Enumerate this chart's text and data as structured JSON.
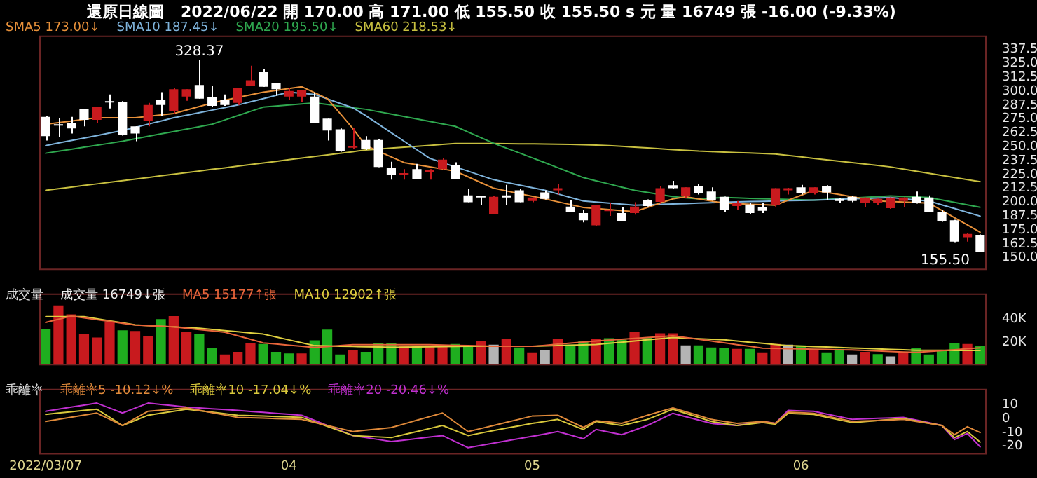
{
  "chart_data": [
    {
      "type": "candlestick",
      "title": "還原日線圖",
      "subtitle": "2022/06/22 開 170.00 高 171.00 低 155.50 收 155.50 s 元 量 16749 張 -16.00 (-9.33%)",
      "categories": [
        "2022/03/07",
        null,
        null,
        null,
        null,
        null,
        null,
        null,
        null,
        null,
        null,
        null,
        null,
        null,
        null,
        null,
        null,
        null,
        null,
        "04",
        null,
        null,
        null,
        null,
        null,
        null,
        null,
        null,
        null,
        null,
        null,
        null,
        null,
        null,
        null,
        null,
        null,
        null,
        "05",
        null,
        null,
        null,
        null,
        null,
        null,
        null,
        null,
        null,
        null,
        null,
        null,
        null,
        null,
        null,
        null,
        null,
        null,
        null,
        null,
        "06",
        null,
        null,
        null,
        null,
        null,
        null,
        null,
        null,
        null,
        null,
        null,
        null,
        null,
        null
      ],
      "ohlc": [
        [
          276.8,
          277.9,
          255.6,
          259.5
        ],
        [
          270,
          276,
          258.7,
          269
        ],
        [
          271,
          276.8,
          261.8,
          266.4
        ],
        [
          283.7,
          283.7,
          268.3,
          274.1
        ],
        [
          274.1,
          285.6,
          271.4,
          285.6
        ],
        [
          290.5,
          297.1,
          284.4,
          289.8
        ],
        [
          290.2,
          291,
          260,
          260.6
        ],
        [
          268.3,
          268.3,
          254.9,
          261.8
        ],
        [
          273.3,
          289.4,
          268.3,
          287.5
        ],
        [
          292.1,
          299.1,
          277.9,
          287.5
        ],
        [
          281.8,
          302.9,
          279.8,
          301.7
        ],
        [
          295.2,
          301.7,
          291.4,
          301.7
        ],
        [
          305.6,
          328.37,
          293.3,
          293.3
        ],
        [
          294.4,
          304.8,
          285.6,
          286.8
        ],
        [
          292.1,
          297.1,
          286.8,
          287.5
        ],
        [
          289.4,
          303.2,
          287.5,
          302.9
        ],
        [
          304.8,
          322.9,
          304.8,
          309.8
        ],
        [
          317.1,
          320.2,
          304,
          304
        ],
        [
          307.5,
          307.5,
          296,
          301.7
        ],
        [
          295.2,
          302.9,
          292.5,
          300.2
        ],
        [
          295.2,
          301,
          290.2,
          301
        ],
        [
          295.2,
          299,
          271,
          271.4
        ],
        [
          275.2,
          275.2,
          255.6,
          264.5
        ],
        [
          265.6,
          266.5,
          245.5,
          246
        ],
        [
          249,
          267.2,
          248,
          250
        ],
        [
          256,
          259.5,
          247,
          248
        ],
        [
          256,
          256.5,
          231.5,
          231.8
        ],
        [
          230.7,
          236.4,
          220.3,
          224.9
        ],
        [
          225,
          229.9,
          220.3,
          226
        ],
        [
          229.9,
          234.5,
          221,
          221.1
        ],
        [
          227.2,
          229.9,
          220.3,
          228.8
        ],
        [
          229.9,
          240,
          228.8,
          238.3
        ],
        [
          233.7,
          236,
          221,
          221.1
        ],
        [
          206.1,
          211.9,
          200,
          200
        ],
        [
          205.7,
          205.7,
          197.3,
          204.2
        ],
        [
          189.6,
          205.7,
          189.6,
          204.9
        ],
        [
          206.1,
          215.7,
          197.3,
          204.2
        ],
        [
          210.7,
          211.9,
          200,
          200
        ],
        [
          201.1,
          204.5,
          200,
          204.2
        ],
        [
          208.8,
          210.7,
          202.6,
          203
        ],
        [
          210.7,
          216.5,
          206.9,
          212.6
        ],
        [
          196.1,
          201.9,
          191.5,
          191.5
        ],
        [
          190.3,
          193,
          181.9,
          183.8
        ],
        [
          179.2,
          197.3,
          178.8,
          197.3
        ],
        [
          191.9,
          199.2,
          187.7,
          193.4
        ],
        [
          190.3,
          195.3,
          183,
          183.1
        ],
        [
          190.3,
          200,
          188.8,
          196.1
        ],
        [
          202.3,
          202.6,
          196,
          196.5
        ],
        [
          200.3,
          214.5,
          198.8,
          212.6
        ],
        [
          215.3,
          219.2,
          212,
          212.6
        ],
        [
          205.7,
          213.4,
          204,
          213.4
        ],
        [
          214.5,
          216.5,
          207,
          208
        ],
        [
          209.6,
          213.4,
          201.5,
          201.9
        ],
        [
          204.9,
          205,
          191.5,
          193.4
        ],
        [
          196.5,
          201.1,
          193.4,
          199.2
        ],
        [
          198,
          199.2,
          189,
          190.3
        ],
        [
          195.3,
          199.2,
          190.3,
          192.3
        ],
        [
          197.3,
          212.6,
          196,
          212.6
        ],
        [
          210.7,
          213,
          207,
          212.6
        ],
        [
          213.4,
          215.7,
          207,
          208
        ],
        [
          208,
          213.4,
          207,
          213.4
        ],
        [
          214.5,
          215.3,
          201.9,
          208.8
        ],
        [
          203,
          204,
          199.2,
          201.1
        ],
        [
          204.9,
          205.7,
          200,
          201.1
        ],
        [
          199.2,
          204.5,
          195.3,
          204.2
        ],
        [
          199.2,
          203.4,
          197.3,
          203
        ],
        [
          194.6,
          204.5,
          194,
          204.2
        ],
        [
          201.1,
          204.5,
          195.3,
          204.2
        ],
        [
          204.9,
          209.6,
          198.8,
          199.2
        ],
        [
          204.2,
          206.1,
          191,
          191.5
        ],
        [
          191.5,
          193.4,
          182.3,
          182.7
        ],
        [
          183.8,
          184.2,
          164,
          164.6
        ],
        [
          168.5,
          172.3,
          164.6,
          171.5
        ],
        [
          170,
          171,
          155.5,
          155.5
        ]
      ],
      "colors": [
        "#ffffff",
        "#ffffff",
        "#ffffff",
        "#ffffff",
        "#c81a1e",
        "#ffffff",
        "#ffffff",
        "#ffffff",
        "#c81a1e",
        "#ffffff",
        "#c81a1e",
        "#c81a1e",
        "#ffffff",
        "#ffffff",
        "#ffffff",
        "#c81a1e",
        "#c81a1e",
        "#ffffff",
        "#ffffff",
        "#c81a1e",
        "#c81a1e",
        "#ffffff",
        "#ffffff",
        "#ffffff",
        "#c81a1e",
        "#ffffff",
        "#ffffff",
        "#ffffff",
        "#c81a1e",
        "#ffffff",
        "#c81a1e",
        "#c81a1e",
        "#ffffff",
        "#ffffff",
        "#ffffff",
        "#c81a1e",
        "#ffffff",
        "#ffffff",
        "#c81a1e",
        "#ffffff",
        "#c81a1e",
        "#ffffff",
        "#ffffff",
        "#c81a1e",
        "#c81a1e",
        "#ffffff",
        "#c81a1e",
        "#ffffff",
        "#c81a1e",
        "#ffffff",
        "#c81a1e",
        "#ffffff",
        "#ffffff",
        "#ffffff",
        "#c81a1e",
        "#ffffff",
        "#ffffff",
        "#c81a1e",
        "#c81a1e",
        "#ffffff",
        "#c81a1e",
        "#ffffff",
        "#ffffff",
        "#ffffff",
        "#c81a1e",
        "#c81a1e",
        "#c81a1e",
        "#c81a1e",
        "#ffffff",
        "#ffffff",
        "#ffffff",
        "#ffffff",
        "#c81a1e",
        "#ffffff"
      ],
      "series": [
        {
          "name": "SMA5 173.00↓",
          "type": "line",
          "color": "#e8913a",
          "values": [
            270.2,
            271.7,
            273.1,
            274.6,
            276,
            276,
            276,
            276,
            277.3,
            278.5,
            279.8,
            283,
            286.2,
            289.4,
            291.8,
            294.3,
            296.7,
            299.1,
            300.7,
            302.4,
            304,
            298.7,
            293.3,
            279.9,
            266.4,
            251,
            245.9,
            240.8,
            235.7,
            233.8,
            231.9,
            229.9,
            228,
            222.9,
            217.7,
            212.6,
            210.2,
            207.8,
            205.4,
            203,
            200.4,
            197.9,
            195.3,
            194.4,
            193.4,
            192.5,
            191.5,
            195.3,
            199.2,
            203,
            204.9,
            203,
            201.1,
            199.2,
            198.7,
            198.2,
            197.8,
            197.3,
            201.8,
            206.2,
            210.7,
            208.8,
            206.9,
            204.9,
            203,
            201.1,
            200.6,
            200.2,
            199.7,
            199.2,
            192.7,
            186.1,
            179.6,
            173
          ]
        },
        {
          "name": "SMA10 187.45↓",
          "type": "line",
          "color": "#7fb4dc",
          "values": [
            251,
            253.3,
            255.5,
            257.8,
            260,
            262.3,
            264.5,
            267.4,
            270.3,
            273.1,
            276,
            278.3,
            280.6,
            282.9,
            285.2,
            287.5,
            290.4,
            293.3,
            296.2,
            299.1,
            298.1,
            297.1,
            293.1,
            289,
            285,
            278,
            270.3,
            262.6,
            254.9,
            247.2,
            239.5,
            235.7,
            231.8,
            228,
            224.1,
            220.3,
            217.9,
            215.5,
            213.1,
            210.7,
            207.5,
            204.3,
            201.1,
            200.2,
            199.2,
            198.3,
            197.3,
            197.7,
            198.1,
            198.4,
            198.8,
            199.2,
            199.6,
            200,
            200.3,
            200.6,
            200.8,
            201.1,
            201.4,
            201.6,
            201.9,
            202.3,
            202.7,
            203.1,
            203.4,
            203.8,
            204.2,
            203.2,
            202.1,
            201.1,
            197.7,
            194.3,
            190.9,
            187.45
          ]
        },
        {
          "name": "SMA20 195.50↓",
          "type": "line",
          "color": "#2fa84f",
          "values": [
            244.1,
            245.9,
            247.7,
            249.5,
            251.3,
            253.1,
            254.9,
            257.1,
            259.3,
            261.5,
            263.6,
            265.8,
            268,
            270.2,
            274.1,
            277.9,
            281.8,
            285.6,
            286.6,
            287.5,
            288.5,
            289.4,
            288,
            286.5,
            285.1,
            283.7,
            281.5,
            279.3,
            277.1,
            274.9,
            272.7,
            270.5,
            268.3,
            263.2,
            258.1,
            253,
            248.7,
            244.4,
            240,
            235.7,
            231.2,
            226.7,
            222.2,
            219.3,
            216.5,
            213.6,
            210.7,
            208.8,
            206.9,
            205,
            204,
            203,
            203.6,
            204.2,
            203.9,
            203.5,
            203.2,
            202.9,
            202.6,
            202.2,
            201.9,
            202.5,
            203.2,
            203.8,
            204.4,
            205.1,
            205.7,
            205.2,
            204.7,
            204.2,
            202,
            199.9,
            197.7,
            195.5
          ]
        },
        {
          "name": "SMA60 218.53↓",
          "type": "line",
          "color": "#c8c040",
          "values": [
            210.7,
            212.2,
            213.6,
            215.1,
            216.5,
            218,
            219.4,
            220.9,
            222.3,
            223.8,
            225.2,
            226.7,
            228.1,
            229.6,
            231,
            232.5,
            233.9,
            235.4,
            236.8,
            238.3,
            239.7,
            241.2,
            242.6,
            244.1,
            245.5,
            247,
            247.8,
            248.7,
            249.5,
            250.4,
            251.2,
            252.1,
            252.9,
            252.9,
            252.8,
            252.8,
            252.7,
            252.6,
            252.5,
            252.4,
            252.3,
            252.1,
            251.8,
            251.4,
            251,
            250.3,
            249.6,
            248.9,
            248.1,
            247.4,
            246.7,
            246,
            245.6,
            245.1,
            244.7,
            244.3,
            243.8,
            243.4,
            242.1,
            240.8,
            239.5,
            238.2,
            236.9,
            235.7,
            234.4,
            233.1,
            231.8,
            229.9,
            228,
            226.1,
            224.2,
            222.3,
            220.4,
            218.53
          ]
        }
      ],
      "ylim": [
        139,
        350
      ],
      "yticks": [
        {
          "value": 150,
          "label": "150.0"
        },
        162.5,
        {
          "value": 175,
          "label": "175.0"
        },
        187.5,
        {
          "value": 200,
          "label": "200.0"
        },
        212.5,
        {
          "value": 225,
          "label": "225.0"
        },
        237.5,
        {
          "value": 250,
          "label": "250.0"
        },
        262.5,
        {
          "value": 275,
          "label": "275.0"
        },
        287.5,
        {
          "value": 300,
          "label": "300.0"
        },
        312.5,
        {
          "value": 325,
          "label": "325.0"
        },
        337.5
      ],
      "annotations": [
        {
          "text": "328.37",
          "y": 328.37
        },
        "155.50"
      ],
      "tick_labels": "y",
      "legend": "top left"
    },
    {
      "type": "bar",
      "title": "成交量",
      "categories": [
        "2022/03/07",
        null,
        null,
        null,
        null,
        null,
        null,
        null,
        null,
        null,
        null,
        null,
        null,
        null,
        null,
        null,
        null,
        null,
        null,
        "04",
        null,
        null,
        null,
        null,
        null,
        null,
        null,
        null,
        null,
        null,
        null,
        null,
        null,
        null,
        null,
        null,
        null,
        null,
        "05",
        null,
        null,
        null,
        null,
        null,
        null,
        null,
        null,
        null,
        null,
        null,
        null,
        null,
        null,
        null,
        null,
        null,
        null,
        null,
        null,
        "06",
        null,
        null,
        null,
        null,
        null,
        null,
        null,
        null,
        null,
        null,
        null,
        null,
        null,
        null
      ],
      "series": [
        {
          "name": "成交量 16749↓張",
          "colors": [
            "#1fae1f",
            "#c81a1e",
            "#c81a1e",
            "#c81a1e",
            "#c81a1e",
            "#c81a1e",
            "#1fae1f",
            "#c81a1e",
            "#c81a1e",
            "#1fae1f",
            "#c81a1e",
            "#c81a1e",
            "#1fae1f",
            "#1fae1f",
            "#c81a1e",
            "#c81a1e",
            "#c81a1e",
            "#1fae1f",
            "#1fae1f",
            "#1fae1f",
            "#c81a1e",
            "#1fae1f",
            "#1fae1f",
            "#1fae1f",
            "#c81a1e",
            "#1fae1f",
            "#1fae1f",
            "#1fae1f",
            "#c81a1e",
            "#1fae1f",
            "#c81a1e",
            "#c81a1e",
            "#1fae1f",
            "#1fae1f",
            "#c81a1e",
            "#b4b4b4",
            "#c81a1e",
            "#1fae1f",
            "#c81a1e",
            "#b4b4b4",
            "#c81a1e",
            "#1fae1f",
            "#1fae1f",
            "#c81a1e",
            "#1fae1f",
            "#1fae1f",
            "#c81a1e",
            "#1fae1f",
            "#c81a1e",
            "#c81a1e",
            "#b4b4b4",
            "#1fae1f",
            "#1fae1f",
            "#1fae1f",
            "#c81a1e",
            "#1fae1f",
            "#c81a1e",
            "#c81a1e",
            "#b4b4b4",
            "#1fae1f",
            "#c81a1e",
            "#1fae1f",
            "#1fae1f",
            "#b4b4b4",
            "#c81a1e",
            "#1fae1f",
            "#b4b4b4",
            "#c81a1e",
            "#1fae1f",
            "#1fae1f",
            "#1fae1f",
            "#1fae1f",
            "#c81a1e",
            "#1fae1f"
          ],
          "values": [
            31.1,
            51.7,
            44,
            27.1,
            24,
            37.8,
            30.2,
            29.6,
            25.6,
            40,
            42.5,
            28.6,
            27.1,
            14.8,
            9.3,
            11.7,
            19.4,
            18.5,
            11.7,
            10.2,
            10.2,
            21.6,
            30.8,
            9.3,
            13.3,
            11.7,
            19.4,
            19.4,
            16.4,
            17,
            17.3,
            16.4,
            18.5,
            16.4,
            21,
            17.9,
            22.5,
            15.4,
            11.1,
            13.3,
            23.1,
            17.9,
            21,
            22.5,
            23.4,
            22.2,
            28.6,
            24,
            27.7,
            27.7,
            17.3,
            17.3,
            15.4,
            14.8,
            14.2,
            14.2,
            11.1,
            18.5,
            17.9,
            17.3,
            13.9,
            11.1,
            14.2,
            9.3,
            11.7,
            9.6,
            7.7,
            11.7,
            14.8,
            9.3,
            13.3,
            19.4,
            18.5,
            16.749
          ]
        },
        {
          "name": "MA5 15177↑張",
          "type": "line",
          "color": "#e8653a",
          "values": [
            37,
            39.8,
            42.5,
            41,
            39.4,
            37.9,
            36.3,
            34.8,
            34.3,
            33.7,
            33.2,
            32.1,
            30.9,
            29.8,
            28.6,
            25.5,
            22.5,
            19.4,
            18.4,
            17.4,
            16.4,
            15.4,
            16.2,
            17.1,
            17.9,
            17.9,
            17.9,
            17.9,
            17.9,
            17.9,
            17.9,
            17.6,
            17.3,
            17,
            16.7,
            16.4,
            16.4,
            16.4,
            16.4,
            17.3,
            18.3,
            19.2,
            20.1,
            21,
            21.8,
            22.5,
            23.3,
            24.1,
            24.8,
            25.6,
            24.1,
            22.5,
            21,
            19.5,
            17.9,
            16.4,
            14.8,
            14.6,
            14.4,
            14.2,
            13.9,
            13.7,
            13.5,
            13.3,
            12.9,
            12.4,
            12,
            11.5,
            11.1,
            11.9,
            12.7,
            13.5,
            14.4,
            15.177
          ]
        },
        {
          "name": "MA10 12902↑張",
          "type": "line",
          "color": "#e0d040",
          "values": [
            42,
            42,
            42,
            42,
            40.3,
            38.5,
            36.8,
            35,
            34.4,
            33.8,
            33.2,
            32.6,
            32,
            31,
            30,
            29,
            28,
            27,
            24.5,
            22,
            19.5,
            17,
            16.8,
            16.5,
            16.3,
            16,
            15.8,
            15.5,
            15.7,
            15.8,
            16,
            16.2,
            16.3,
            16.5,
            16.5,
            16.5,
            16.4,
            16.4,
            16.4,
            16.7,
            17,
            17.4,
            17.7,
            18,
            19,
            20,
            21,
            22,
            23,
            24,
            23.5,
            23,
            22.5,
            22,
            21,
            20,
            19,
            18,
            17,
            16.6,
            16.2,
            15.8,
            15.4,
            15,
            14.6,
            14.2,
            13.8,
            13.4,
            13,
            13,
            13,
            12.9,
            12.9,
            12.902
          ]
        }
      ],
      "ylim": [
        0,
        62
      ],
      "yticks": [
        {
          "value": 20,
          "label": "20K"
        },
        {
          "value": 40,
          "label": "40K"
        }
      ],
      "tick_labels": "y",
      "legend": "top left"
    },
    {
      "type": "line",
      "title": "乖離率",
      "categories": [
        "2022/03/07",
        null,
        null,
        null,
        null,
        null,
        null,
        null,
        null,
        null,
        null,
        null,
        null,
        null,
        null,
        null,
        null,
        null,
        null,
        "04",
        null,
        null,
        null,
        null,
        null,
        null,
        null,
        null,
        null,
        null,
        null,
        null,
        null,
        null,
        null,
        null,
        null,
        null,
        "05",
        null,
        null,
        null,
        null,
        null,
        null,
        null,
        null,
        null,
        null,
        null,
        null,
        null,
        null,
        null,
        null,
        null,
        null,
        null,
        null,
        "06",
        null,
        null,
        null,
        null,
        null,
        null,
        null,
        null,
        null,
        null,
        null,
        null,
        null,
        null
      ],
      "series": [
        {
          "name": "乖離率5 -10.12↓%",
          "color": "#e08a3a",
          "values": [
            -2.1,
            -0.6,
            1,
            2.5,
            4,
            -0.5,
            -5,
            0.2,
            5.3,
            6.1,
            6.9,
            7.7,
            6,
            4.3,
            2.6,
            0.9,
            0.6,
            0.3,
            0,
            -0.3,
            -0.6,
            -2.8,
            -5,
            -7.2,
            -9.4,
            -8.4,
            -7.5,
            -6.5,
            -3.9,
            -1.2,
            1.4,
            4,
            -2.7,
            -9.4,
            -7.2,
            -5,
            -2.7,
            -0.5,
            1.8,
            2.1,
            2.4,
            -2,
            -6.4,
            -1.5,
            -2.5,
            -3.5,
            -0.6,
            2.4,
            5.1,
            7.7,
            4.9,
            2.2,
            -0.6,
            -2.1,
            -3.5,
            -2.8,
            -2.1,
            -3.5,
            4.7,
            4.3,
            3.8,
            1.8,
            -0.1,
            -2.1,
            -1.7,
            -1.4,
            -1,
            -0.6,
            -2.1,
            -3.5,
            -5,
            -11.7,
            -5.9,
            -10.12
          ]
        },
        {
          "name": "乖離率10 -17.04↓%",
          "color": "#d8c83c",
          "values": [
            3,
            4,
            4.9,
            5.9,
            6.8,
            0.9,
            -5,
            -1.3,
            2.4,
            3.9,
            5.3,
            6.8,
            5.7,
            4.6,
            3.5,
            2.4,
            2.1,
            1.8,
            1.5,
            1.2,
            0.9,
            -2.4,
            -5.7,
            -9,
            -12.3,
            -12.8,
            -13.3,
            -13.8,
            -11.6,
            -9.4,
            -7.2,
            -5,
            -8.7,
            -12.3,
            -10.5,
            -8.7,
            -6.9,
            -5.2,
            -3.5,
            -2.1,
            -0.6,
            -4.3,
            -7.9,
            -2.1,
            -3.6,
            -5,
            -2.8,
            -0.6,
            3.1,
            6.8,
            3.8,
            0.9,
            -2.1,
            -3.6,
            -5,
            -4,
            -2.9,
            -4.1,
            3.8,
            3.4,
            3,
            1,
            -1,
            -2.9,
            -2.2,
            -1.5,
            -0.7,
            0,
            -1.7,
            -3.3,
            -5,
            -13.8,
            -9.4,
            -17.04
          ]
        },
        {
          "name": "乖離率20 -20.46↓%",
          "color": "#c030d0",
          "values": [
            5.3,
            6.8,
            8.3,
            9.7,
            11.2,
            7.6,
            4,
            7.6,
            11.2,
            10.2,
            9.3,
            8.3,
            7.7,
            7.1,
            6.5,
            5.9,
            5.2,
            4.5,
            3.8,
            3.1,
            2.4,
            -1.3,
            -5,
            -8.6,
            -12.3,
            -13.8,
            -15.2,
            -16.7,
            -15.6,
            -14.5,
            -13.4,
            -12.3,
            -16.7,
            -21.1,
            -19.5,
            -17.8,
            -16.2,
            -14.5,
            -12.9,
            -11.2,
            -9.4,
            -12,
            -14.6,
            -7.9,
            -9.8,
            -11.7,
            -8.4,
            -5,
            -0.6,
            3.8,
            1.4,
            -1.1,
            -3.5,
            -4.3,
            -5,
            -3.6,
            -2.1,
            -3.5,
            5.9,
            5.6,
            5.3,
            3.3,
            1.4,
            -0.6,
            -0.2,
            0.2,
            0.5,
            0.9,
            -1.1,
            -3,
            -5,
            -15.2,
            -10.8,
            -20.46
          ]
        }
      ],
      "ylim": [
        -26,
        21.5
      ],
      "yticks": [
        10,
        0,
        -10,
        -20
      ],
      "legend": "top left"
    }
  ]
}
